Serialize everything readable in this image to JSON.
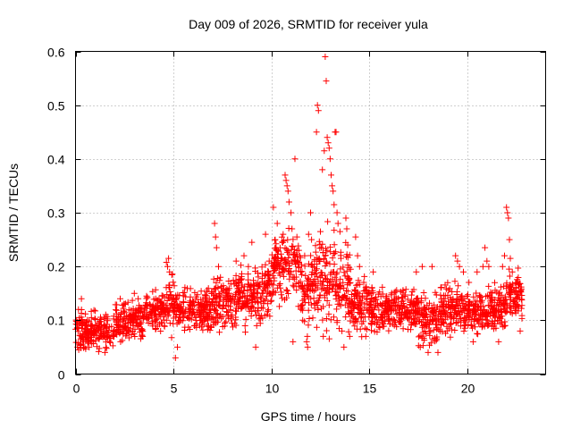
{
  "chart_data": {
    "type": "scatter",
    "title": "Day 009 of 2026, SRMTID for receiver yula",
    "xlabel": "GPS time / hours",
    "ylabel": "SRMTID / TECUs",
    "xlim": [
      0,
      24
    ],
    "ylim": [
      0,
      0.6
    ],
    "x_ticks": [
      0,
      5,
      10,
      15,
      20
    ],
    "x_tick_labels": [
      "0",
      "5",
      "10",
      "15",
      "20"
    ],
    "y_ticks": [
      0,
      0.1,
      0.2,
      0.3,
      0.4,
      0.5,
      0.6
    ],
    "y_tick_labels": [
      "0",
      "0.1",
      "0.2",
      "0.3",
      "0.4",
      "0.5",
      "0.6"
    ],
    "grid": true,
    "marker": "plus",
    "series": [
      {
        "name": "SRMTID",
        "color": "#ff0000",
        "segments": [
          {
            "start": 0.0,
            "end": 0.5,
            "base": 0.08,
            "spread": 0.035
          },
          {
            "start": 0.5,
            "end": 2.0,
            "base": 0.08,
            "spread": 0.03
          },
          {
            "start": 2.0,
            "end": 3.5,
            "base": 0.1,
            "spread": 0.03
          },
          {
            "start": 3.5,
            "end": 4.6,
            "base": 0.115,
            "spread": 0.03
          },
          {
            "start": 4.6,
            "end": 5.0,
            "base": 0.14,
            "spread": 0.05
          },
          {
            "start": 5.0,
            "end": 7.0,
            "base": 0.12,
            "spread": 0.035
          },
          {
            "start": 7.0,
            "end": 8.0,
            "base": 0.135,
            "spread": 0.04
          },
          {
            "start": 8.0,
            "end": 9.5,
            "base": 0.14,
            "spread": 0.05
          },
          {
            "start": 9.5,
            "end": 10.0,
            "base": 0.16,
            "spread": 0.05
          },
          {
            "start": 10.0,
            "end": 11.5,
            "base": 0.2,
            "spread": 0.055
          },
          {
            "start": 11.5,
            "end": 12.2,
            "base": 0.15,
            "spread": 0.06
          },
          {
            "start": 12.2,
            "end": 13.3,
            "base": 0.18,
            "spread": 0.08
          },
          {
            "start": 13.3,
            "end": 14.0,
            "base": 0.16,
            "spread": 0.06
          },
          {
            "start": 14.0,
            "end": 15.0,
            "base": 0.13,
            "spread": 0.045
          },
          {
            "start": 15.0,
            "end": 17.5,
            "base": 0.12,
            "spread": 0.035
          },
          {
            "start": 17.5,
            "end": 18.5,
            "base": 0.1,
            "spread": 0.04
          },
          {
            "start": 18.5,
            "end": 20.0,
            "base": 0.12,
            "spread": 0.04
          },
          {
            "start": 20.0,
            "end": 21.5,
            "base": 0.12,
            "spread": 0.035
          },
          {
            "start": 21.5,
            "end": 22.0,
            "base": 0.12,
            "spread": 0.04
          },
          {
            "start": 22.0,
            "end": 22.8,
            "base": 0.14,
            "spread": 0.04
          }
        ],
        "points": [
          [
            0.1,
            0.05
          ],
          [
            0.15,
            0.12
          ],
          [
            0.3,
            0.14
          ],
          [
            0.5,
            0.09
          ],
          [
            1.5,
            0.04
          ],
          [
            2.3,
            0.06
          ],
          [
            3.0,
            0.15
          ],
          [
            3.2,
            0.14
          ],
          [
            4.7,
            0.2
          ],
          [
            4.75,
            0.215
          ],
          [
            4.8,
            0.19
          ],
          [
            5.1,
            0.03
          ],
          [
            5.2,
            0.05
          ],
          [
            7.1,
            0.28
          ],
          [
            7.15,
            0.255
          ],
          [
            7.2,
            0.235
          ],
          [
            7.3,
            0.2
          ],
          [
            7.4,
            0.18
          ],
          [
            8.2,
            0.21
          ],
          [
            8.6,
            0.22
          ],
          [
            9.0,
            0.245
          ],
          [
            9.2,
            0.05
          ],
          [
            9.7,
            0.26
          ],
          [
            10.1,
            0.31
          ],
          [
            10.3,
            0.28
          ],
          [
            10.6,
            0.26
          ],
          [
            10.7,
            0.37
          ],
          [
            10.75,
            0.36
          ],
          [
            10.8,
            0.35
          ],
          [
            10.85,
            0.34
          ],
          [
            10.9,
            0.32
          ],
          [
            11.0,
            0.3
          ],
          [
            11.05,
            0.27
          ],
          [
            11.1,
            0.06
          ],
          [
            11.2,
            0.4
          ],
          [
            11.3,
            0.255
          ],
          [
            11.4,
            0.23
          ],
          [
            11.6,
            0.1
          ],
          [
            11.7,
            0.22
          ],
          [
            11.8,
            0.06
          ],
          [
            11.85,
            0.05
          ],
          [
            11.9,
            0.26
          ],
          [
            12.0,
            0.3
          ],
          [
            12.05,
            0.25
          ],
          [
            12.1,
            0.2
          ],
          [
            12.2,
            0.21
          ],
          [
            12.3,
            0.45
          ],
          [
            12.35,
            0.5
          ],
          [
            12.4,
            0.49
          ],
          [
            12.5,
            0.265
          ],
          [
            12.55,
            0.235
          ],
          [
            12.6,
            0.38
          ],
          [
            12.65,
            0.07
          ],
          [
            12.7,
            0.415
          ],
          [
            12.75,
            0.59
          ],
          [
            12.8,
            0.545
          ],
          [
            12.85,
            0.44
          ],
          [
            12.9,
            0.43
          ],
          [
            12.95,
            0.42
          ],
          [
            13.0,
            0.4
          ],
          [
            13.05,
            0.37
          ],
          [
            13.1,
            0.35
          ],
          [
            13.15,
            0.34
          ],
          [
            13.2,
            0.315
          ],
          [
            13.25,
            0.45
          ],
          [
            13.3,
            0.45
          ],
          [
            13.35,
            0.3
          ],
          [
            13.4,
            0.28
          ],
          [
            13.5,
            0.265
          ],
          [
            13.55,
            0.215
          ],
          [
            13.6,
            0.08
          ],
          [
            13.7,
            0.05
          ],
          [
            13.8,
            0.29
          ],
          [
            13.85,
            0.27
          ],
          [
            13.9,
            0.24
          ],
          [
            14.0,
            0.07
          ],
          [
            14.3,
            0.255
          ],
          [
            14.4,
            0.22
          ],
          [
            14.5,
            0.2
          ],
          [
            15.2,
            0.19
          ],
          [
            17.4,
            0.19
          ],
          [
            17.6,
            0.05
          ],
          [
            17.7,
            0.2
          ],
          [
            18.0,
            0.04
          ],
          [
            18.2,
            0.2
          ],
          [
            18.5,
            0.04
          ],
          [
            19.0,
            0.17
          ],
          [
            19.4,
            0.22
          ],
          [
            19.5,
            0.21
          ],
          [
            19.6,
            0.2
          ],
          [
            19.8,
            0.19
          ],
          [
            20.3,
            0.06
          ],
          [
            20.5,
            0.19
          ],
          [
            20.8,
            0.2
          ],
          [
            20.9,
            0.235
          ],
          [
            21.0,
            0.21
          ],
          [
            21.1,
            0.2
          ],
          [
            21.4,
            0.17
          ],
          [
            21.6,
            0.06
          ],
          [
            21.8,
            0.2
          ],
          [
            21.9,
            0.22
          ],
          [
            22.0,
            0.31
          ],
          [
            22.05,
            0.3
          ],
          [
            22.1,
            0.29
          ],
          [
            22.15,
            0.25
          ],
          [
            22.2,
            0.215
          ],
          [
            22.3,
            0.19
          ],
          [
            22.5,
            0.17
          ],
          [
            22.7,
            0.08
          ]
        ]
      }
    ]
  }
}
